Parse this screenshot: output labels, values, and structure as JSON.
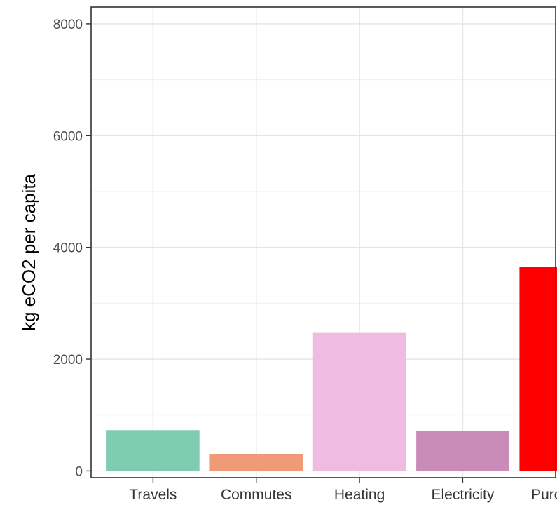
{
  "chart_data": {
    "type": "bar",
    "title": "",
    "xlabel": "",
    "ylabel": "kg eCO2 per capita",
    "categories": [
      "Travels",
      "Commutes",
      "Heating",
      "Electricity",
      "Purchases"
    ],
    "values": [
      730,
      300,
      2470,
      720,
      3650
    ],
    "colors": [
      "#7fcdb0",
      "#f09a78",
      "#f0bbe0",
      "#c98cb8",
      "#ff0000"
    ],
    "ylim": [
      -120,
      8300
    ],
    "yticks": [
      0,
      2000,
      4000,
      6000,
      8000
    ],
    "ytick_labels": [
      "0",
      "2000",
      "4000",
      "6000",
      "8000"
    ],
    "grid": true,
    "legend": "none"
  }
}
